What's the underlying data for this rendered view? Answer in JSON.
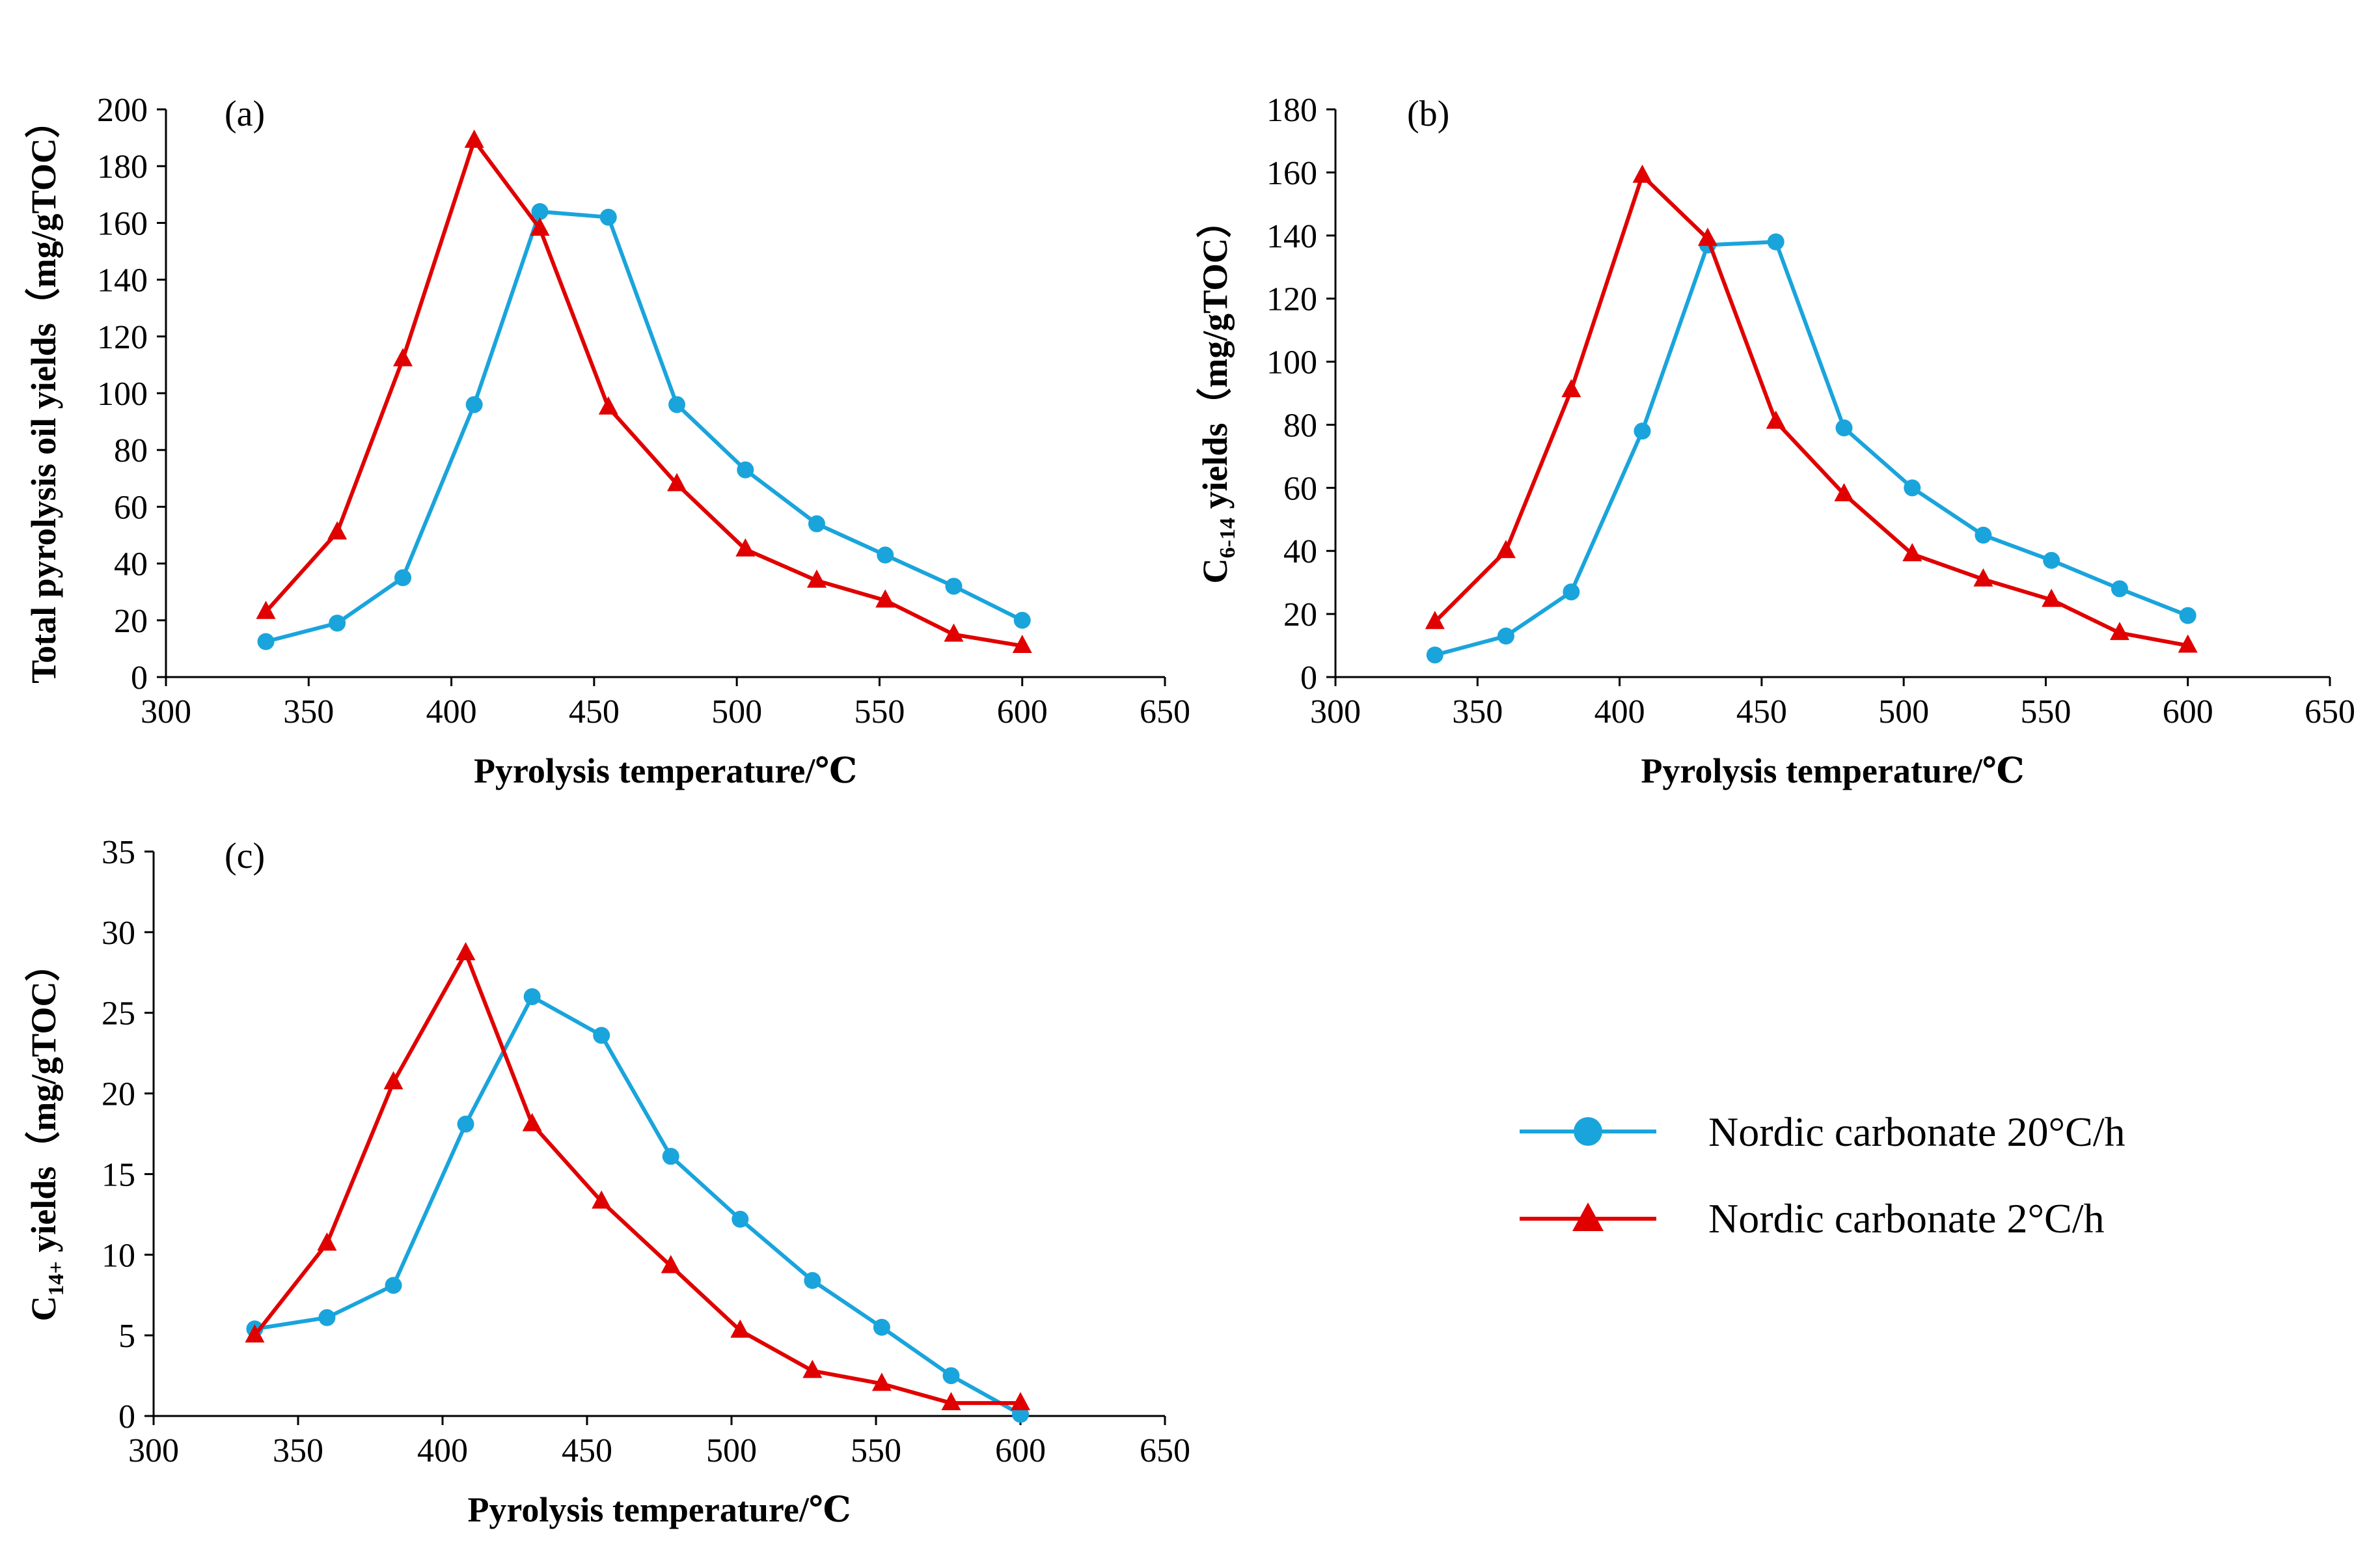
{
  "colors": {
    "series_20": "#1aa4dc",
    "series_2": "#e00000"
  },
  "legend": {
    "items": [
      {
        "name": "Nordic carbonate 20°C/h",
        "marker": "circle",
        "color": "#1aa4dc"
      },
      {
        "name": "Nordic carbonate 2°C/h",
        "marker": "triangle",
        "color": "#e00000"
      }
    ]
  },
  "chart_data": [
    {
      "type": "line",
      "panel_tag": "(a)",
      "xlabel": "Pyrolysis temperature/℃",
      "ylabel": {
        "text": "Total pyrolysis oil yields（mg/gTOC）"
      },
      "xlim": [
        300,
        650
      ],
      "ylim": [
        0,
        200
      ],
      "xticks": [
        300,
        350,
        400,
        450,
        500,
        550,
        600,
        650
      ],
      "yticks": [
        0,
        20,
        40,
        60,
        80,
        100,
        120,
        140,
        160,
        180,
        200
      ],
      "series": [
        {
          "name": "Nordic carbonate 20°C/h",
          "marker": "circle",
          "x": [
            335,
            360,
            383,
            408,
            431,
            455,
            479,
            503,
            528,
            552,
            576,
            600
          ],
          "y": [
            12.5,
            19,
            35,
            96,
            164,
            162,
            96,
            73,
            54,
            43,
            32,
            20
          ]
        },
        {
          "name": "Nordic carbonate 2°C/h",
          "marker": "triangle",
          "x": [
            335,
            360,
            383,
            408,
            431,
            455,
            479,
            503,
            528,
            552,
            576,
            600
          ],
          "y": [
            23,
            51,
            112,
            189,
            158,
            95,
            68,
            45,
            34,
            27,
            15,
            11
          ]
        }
      ]
    },
    {
      "type": "line",
      "panel_tag": "(b)",
      "xlabel": "Pyrolysis temperature/℃",
      "ylabel": {
        "prefix": "C",
        "sub": "6-14",
        "suffix": " yields（mg/gTOC）"
      },
      "xlim": [
        300,
        650
      ],
      "ylim": [
        0,
        180
      ],
      "xticks": [
        300,
        350,
        400,
        450,
        500,
        550,
        600,
        650
      ],
      "yticks": [
        0,
        20,
        40,
        60,
        80,
        100,
        120,
        140,
        160,
        180
      ],
      "series": [
        {
          "name": "Nordic carbonate 20°C/h",
          "marker": "circle",
          "x": [
            335,
            360,
            383,
            408,
            431,
            455,
            479,
            503,
            528,
            552,
            576,
            600
          ],
          "y": [
            7,
            13,
            27,
            78,
            137,
            138,
            79,
            60,
            45,
            37,
            28,
            19.5
          ]
        },
        {
          "name": "Nordic carbonate 2°C/h",
          "marker": "triangle",
          "x": [
            335,
            360,
            383,
            408,
            431,
            455,
            479,
            503,
            528,
            552,
            576,
            600
          ],
          "y": [
            17.5,
            40,
            91,
            159,
            139,
            81,
            58,
            39,
            31,
            24.5,
            14,
            10
          ]
        }
      ]
    },
    {
      "type": "line",
      "panel_tag": "(c)",
      "xlabel": "Pyrolysis temperature/℃",
      "ylabel": {
        "prefix": "C",
        "sub": "14+",
        "suffix": " yields（mg/gTOC）"
      },
      "xlim": [
        300,
        650
      ],
      "ylim": [
        0,
        35
      ],
      "xticks": [
        300,
        350,
        400,
        450,
        500,
        550,
        600,
        650
      ],
      "yticks": [
        0,
        5,
        10,
        15,
        20,
        25,
        30,
        35
      ],
      "series": [
        {
          "name": "Nordic carbonate 20°C/h",
          "marker": "circle",
          "x": [
            335,
            360,
            383,
            408,
            431,
            455,
            479,
            503,
            528,
            552,
            576,
            600
          ],
          "y": [
            5.4,
            6.1,
            8.1,
            18.1,
            26.0,
            23.6,
            16.1,
            12.2,
            8.4,
            5.5,
            2.5,
            0.1
          ]
        },
        {
          "name": "Nordic carbonate 2°C/h",
          "marker": "triangle",
          "x": [
            335,
            360,
            383,
            408,
            431,
            455,
            479,
            503,
            528,
            552,
            576,
            600
          ],
          "y": [
            5.0,
            10.7,
            20.7,
            28.7,
            18.1,
            13.3,
            9.3,
            5.3,
            2.8,
            2.0,
            0.8,
            0.8
          ]
        }
      ]
    }
  ]
}
